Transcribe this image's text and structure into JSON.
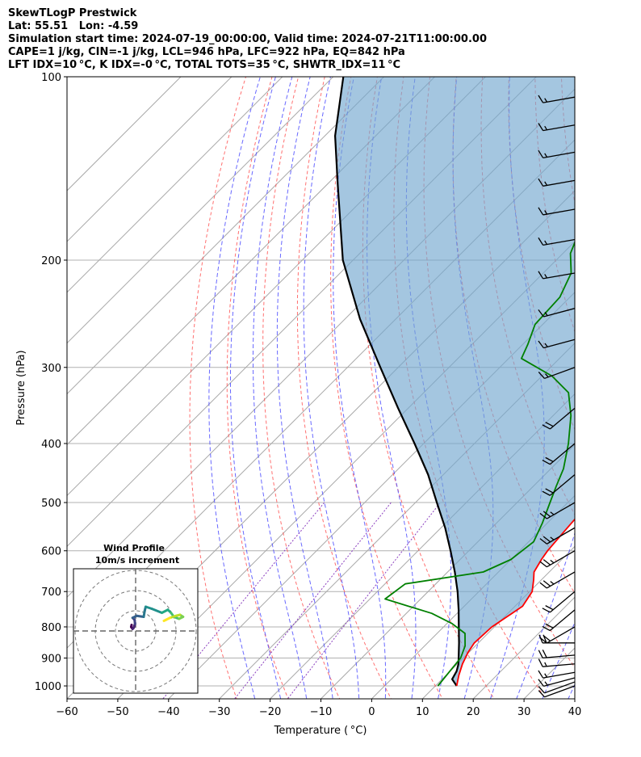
{
  "header": {
    "line1": "SkewTLogP Prestwick",
    "line2": "Lat: 55.51   Lon: -4.59",
    "line3": "Simulation start time: 2024-07-19_00:00:00, Valid time: 2024-07-21T11:00:00.00",
    "line4": "CAPE=1 j/kg, CIN=-1 j/kg, LCL=946 hPa, LFC=922 hPa, EQ=842 hPa",
    "line5": "LFT IDX=10 °C, K IDX=-0 °C, TOTAL TOTS=35 °C, SHWTR_IDX=11 °C"
  },
  "chart_data": {
    "type": "line",
    "xlabel": "Temperature ( °C)",
    "ylabel": "Pressure (hPa)",
    "xlim": [
      -60,
      40
    ],
    "ylim": [
      1050,
      100
    ],
    "y_scale": "log",
    "skew": "45 degrees",
    "x_ticks": [
      -60,
      -50,
      -40,
      -30,
      -20,
      -10,
      0,
      10,
      20,
      30,
      40
    ],
    "y_ticks": [
      1000,
      900,
      800,
      700,
      600,
      500,
      400,
      300,
      200,
      100
    ],
    "grid": true,
    "series": [
      {
        "color": "#ff0000",
        "pressure": [
          1000,
          960,
          920,
          880,
          850,
          800,
          760,
          740,
          700,
          670,
          650,
          620,
          600,
          560,
          520,
          480,
          440,
          410,
          380,
          355,
          335,
          300,
          275,
          250,
          220,
          200,
          180,
          160,
          140,
          125,
          110,
          100
        ],
        "temperature": [
          14.2,
          12.5,
          11.0,
          9.8,
          9.2,
          9.5,
          10.8,
          11.5,
          10.5,
          8.5,
          7.0,
          6.0,
          5.5,
          5.0,
          4.5,
          3.5,
          1.8,
          -0.5,
          -3.5,
          -6.5,
          -7.5,
          -11.0,
          -13.0,
          -12.5,
          -13.0,
          -13.5,
          -15.5,
          -18.0,
          -20.5,
          -22.0,
          -22.0,
          -22.5
        ]
      },
      {
        "color": "#008000",
        "pressure": [
          1000,
          950,
          900,
          860,
          820,
          790,
          760,
          720,
          680,
          650,
          620,
          580,
          540,
          500,
          470,
          440,
          400,
          360,
          330,
          310,
          290,
          275,
          255,
          230,
          210,
          195,
          180,
          160,
          140,
          120,
          100
        ],
        "temperature": [
          10.5,
          10.0,
          9.5,
          8.0,
          5.5,
          1.0,
          -5.0,
          -17.0,
          -16.0,
          -3.0,
          0.0,
          1.0,
          -1.0,
          -3.5,
          -5.5,
          -7.5,
          -11.5,
          -16.5,
          -21.5,
          -28.0,
          -37.5,
          -39.0,
          -41.5,
          -42.0,
          -44.5,
          -48.5,
          -51.0,
          -52.0,
          -53.0,
          -53.0,
          -53.0
        ]
      },
      {
        "color": "#000000",
        "pressure": [
          1000,
          975,
          946,
          922,
          900,
          850,
          800,
          750,
          700,
          650,
          600,
          550,
          500,
          450,
          400,
          350,
          300,
          250,
          200,
          150,
          125,
          100
        ],
        "temperature": [
          14.2,
          12.0,
          11.3,
          10.3,
          9.1,
          6.2,
          3.0,
          -0.4,
          -4.2,
          -8.6,
          -13.6,
          -19.2,
          -25.8,
          -33.0,
          -41.8,
          -52.0,
          -63.5,
          -77.0,
          -92.0,
          -108.0,
          -118.0,
          -128.0
        ]
      }
    ],
    "wind_barbs": {
      "pressure": [
        1000,
        985,
        970,
        950,
        920,
        890,
        850,
        800,
        750,
        700,
        650,
        600,
        550,
        500,
        450,
        400,
        350,
        300,
        270,
        240,
        210,
        185,
        165,
        148,
        133,
        120,
        108
      ],
      "speed_kt": [
        10,
        10,
        15,
        15,
        15,
        20,
        20,
        20,
        20,
        20,
        25,
        25,
        25,
        25,
        20,
        20,
        20,
        15,
        15,
        15,
        15,
        15,
        15,
        15,
        15,
        15,
        15
      ],
      "direction_deg": [
        250,
        250,
        255,
        260,
        265,
        265,
        270,
        240,
        230,
        230,
        240,
        240,
        240,
        240,
        230,
        230,
        230,
        250,
        255,
        255,
        260,
        260,
        260,
        260,
        260,
        260,
        260
      ]
    },
    "hodograph": {
      "title": "Wind Profile",
      "subtitle": "10m/s increment",
      "rings_ms": [
        10,
        20,
        30
      ],
      "u_ms": [
        -2.0,
        -2.2,
        -1.5,
        -1.0,
        -0.3,
        -0.5,
        -1.5,
        0.5,
        4.0,
        4.5,
        5.0,
        8.0,
        13.0,
        16.0,
        17.5,
        19.0,
        21.5,
        23.5,
        22.0,
        20.0,
        17.0,
        15.0,
        14.0
      ],
      "v_ms": [
        3.0,
        2.0,
        1.0,
        1.5,
        3.5,
        5.5,
        6.5,
        7.5,
        7.0,
        10.0,
        12.0,
        11.0,
        9.0,
        10.5,
        9.0,
        7.0,
        6.0,
        7.0,
        8.0,
        7.5,
        6.5,
        5.5,
        5.0
      ]
    }
  }
}
